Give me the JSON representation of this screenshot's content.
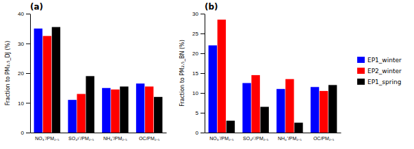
{
  "chart_data": [
    {
      "type": "bar",
      "title": "(a)",
      "y_label": "Fraction to PM₂.₅_DJ (%)",
      "categories": [
        "NO₃⁻/PM₂.₅",
        "SO₄²⁻/PM₂.₅",
        "NH₄⁺/PM₂.₅",
        "OC/PM₂.₅"
      ],
      "series": [
        {
          "name": "EP1_winter",
          "color": "#0000ff",
          "values": [
            35.0,
            11.0,
            15.0,
            16.5
          ]
        },
        {
          "name": "EP2_winter",
          "color": "#ff0000",
          "values": [
            32.5,
            13.0,
            14.5,
            15.5
          ]
        },
        {
          "name": "EP1_spring",
          "color": "#000000",
          "values": [
            35.5,
            19.0,
            15.5,
            12.0
          ]
        }
      ],
      "ylim": [
        0,
        40
      ],
      "yticks": [
        0,
        10,
        20,
        30,
        40
      ],
      "grid": false,
      "legend": false
    },
    {
      "type": "bar",
      "title": "(b)",
      "y_label": "Fraction to PM₂.₅_BN (%)",
      "categories": [
        "NO₃⁻/PM₂.₅",
        "SO₄²⁻/PM₂.₅",
        "NH₄⁺/PM₂.₅",
        "OC/PM₂.₅"
      ],
      "series": [
        {
          "name": "EP1_winter",
          "color": "#0000ff",
          "values": [
            22.0,
            12.5,
            11.0,
            11.5
          ]
        },
        {
          "name": "EP2_winter",
          "color": "#ff0000",
          "values": [
            28.5,
            14.5,
            13.5,
            10.5
          ]
        },
        {
          "name": "EP1_spring",
          "color": "#000000",
          "values": [
            3.0,
            6.5,
            2.5,
            12.0
          ]
        }
      ],
      "ylim": [
        0,
        30
      ],
      "yticks": [
        0,
        5,
        10,
        15,
        20,
        25,
        30
      ],
      "grid": false,
      "legend": "right"
    }
  ]
}
